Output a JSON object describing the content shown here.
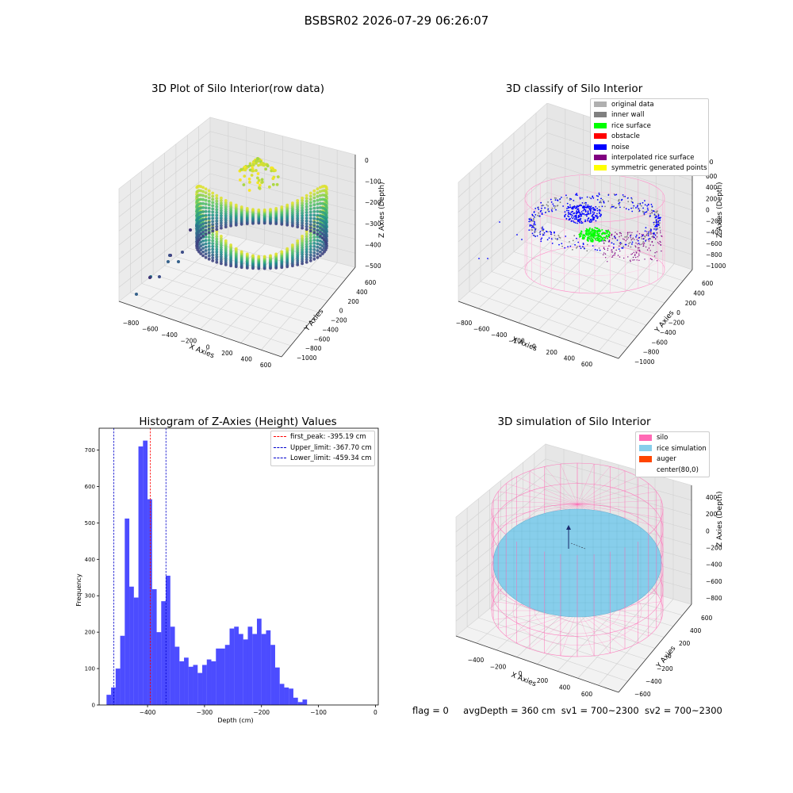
{
  "figure": {
    "suptitle": "BSBSR02 2026-07-29 06:26:07",
    "footer": {
      "flag": "flag = 0",
      "avg_depth": "avgDepth = 360 cm",
      "sv1": "sv1 = 700~2300",
      "sv2": "sv2 = 700~2300"
    }
  },
  "panels": {
    "raw": {
      "title": "3D Plot of Silo Interior(row data)",
      "xlabel": "X Axies",
      "ylabel": "Y Axies",
      "zlabel": "Z Axies (Depth)",
      "x_ticks": [
        "−800",
        "−600",
        "−400",
        "−200",
        "0",
        "200",
        "400",
        "600"
      ],
      "y_ticks": [
        "600",
        "400",
        "200",
        "0",
        "−200",
        "−400",
        "−600",
        "−800",
        "−1000"
      ],
      "z_ticks": [
        "0",
        "−100",
        "−200",
        "−300",
        "−400",
        "−500"
      ],
      "colormap": "viridis"
    },
    "classify": {
      "title": "3D classify of Silo Interior",
      "xlabel": "X Axies",
      "ylabel": "Y Axies",
      "zlabel": "Z Axies (Depth)",
      "x_ticks": [
        "−800",
        "−600",
        "−400",
        "−200",
        "0",
        "200",
        "400",
        "600"
      ],
      "y_ticks": [
        "600",
        "400",
        "200",
        "0",
        "−200",
        "−400",
        "−600",
        "−800",
        "−1000"
      ],
      "z_ticks": [
        "600",
        "400",
        "200",
        "0",
        "−200",
        "−400",
        "−600",
        "−800",
        "−1000"
      ],
      "z_top_partial": "00",
      "legend": [
        {
          "label": "original data",
          "color": "#b0b0b0"
        },
        {
          "label": "inner wall",
          "color": "#808080"
        },
        {
          "label": "rice surface",
          "color": "#00ff00"
        },
        {
          "label": "obstacle",
          "color": "#ff0000"
        },
        {
          "label": "noise",
          "color": "#0000ff"
        },
        {
          "label": "interpolated rice surface",
          "color": "#800080"
        },
        {
          "label": "symmetric generated points",
          "color": "#ffff00"
        }
      ]
    },
    "simulation": {
      "title": "3D simulation of Silo Interior",
      "xlabel": "X Axies",
      "ylabel": "Y Axies",
      "zlabel": "Z Axies (Depth)",
      "x_ticks": [
        "−400",
        "−200",
        "0",
        "200",
        "400",
        "600"
      ],
      "y_ticks": [
        "600",
        "400",
        "200",
        "0",
        "−200",
        "−400",
        "−600"
      ],
      "z_ticks": [
        "400",
        "200",
        "0",
        "−200",
        "−400",
        "−600",
        "−800"
      ],
      "legend": [
        {
          "label": "silo",
          "color": "#ff69b4"
        },
        {
          "label": "rice simulation",
          "color": "#87ceeb"
        },
        {
          "label": "auger",
          "color": "#ff4500"
        },
        {
          "label": "center(80,0)",
          "color": "none"
        }
      ]
    }
  },
  "chart_data": {
    "type": "bar",
    "title": "Histogram of Z-Axies (Height) Values",
    "xlabel": "Depth (cm)",
    "ylabel": "Frequency",
    "xlim": [
      -485,
      5
    ],
    "ylim": [
      0,
      760
    ],
    "x_ticks": [
      -400,
      -300,
      -200,
      -100,
      0
    ],
    "x_tick_labels": [
      "−400",
      "−300",
      "−200",
      "−100",
      "0"
    ],
    "y_ticks": [
      0,
      100,
      200,
      300,
      400,
      500,
      600,
      700
    ],
    "bar_color": "#0000ff",
    "bins": {
      "start": -472,
      "width": 8.0,
      "counts": [
        28,
        48,
        100,
        190,
        512,
        325,
        295,
        710,
        726,
        565,
        318,
        200,
        285,
        355,
        215,
        160,
        120,
        130,
        105,
        110,
        88,
        110,
        125,
        120,
        155,
        155,
        165,
        210,
        215,
        195,
        180,
        215,
        195,
        237,
        195,
        205,
        165,
        103,
        58,
        48,
        45,
        20,
        8,
        15
      ]
    },
    "lines": [
      {
        "label": "first_peak: -395.19 cm",
        "x": -395.19,
        "color": "#ff0000"
      },
      {
        "label": "Upper_limit: -367.70 cm",
        "x": -367.7,
        "color": "#0000cc"
      },
      {
        "label": "Lower_limit: -459.34 cm",
        "x": -459.34,
        "color": "#0000cc"
      }
    ],
    "legend_position": "upper right"
  }
}
